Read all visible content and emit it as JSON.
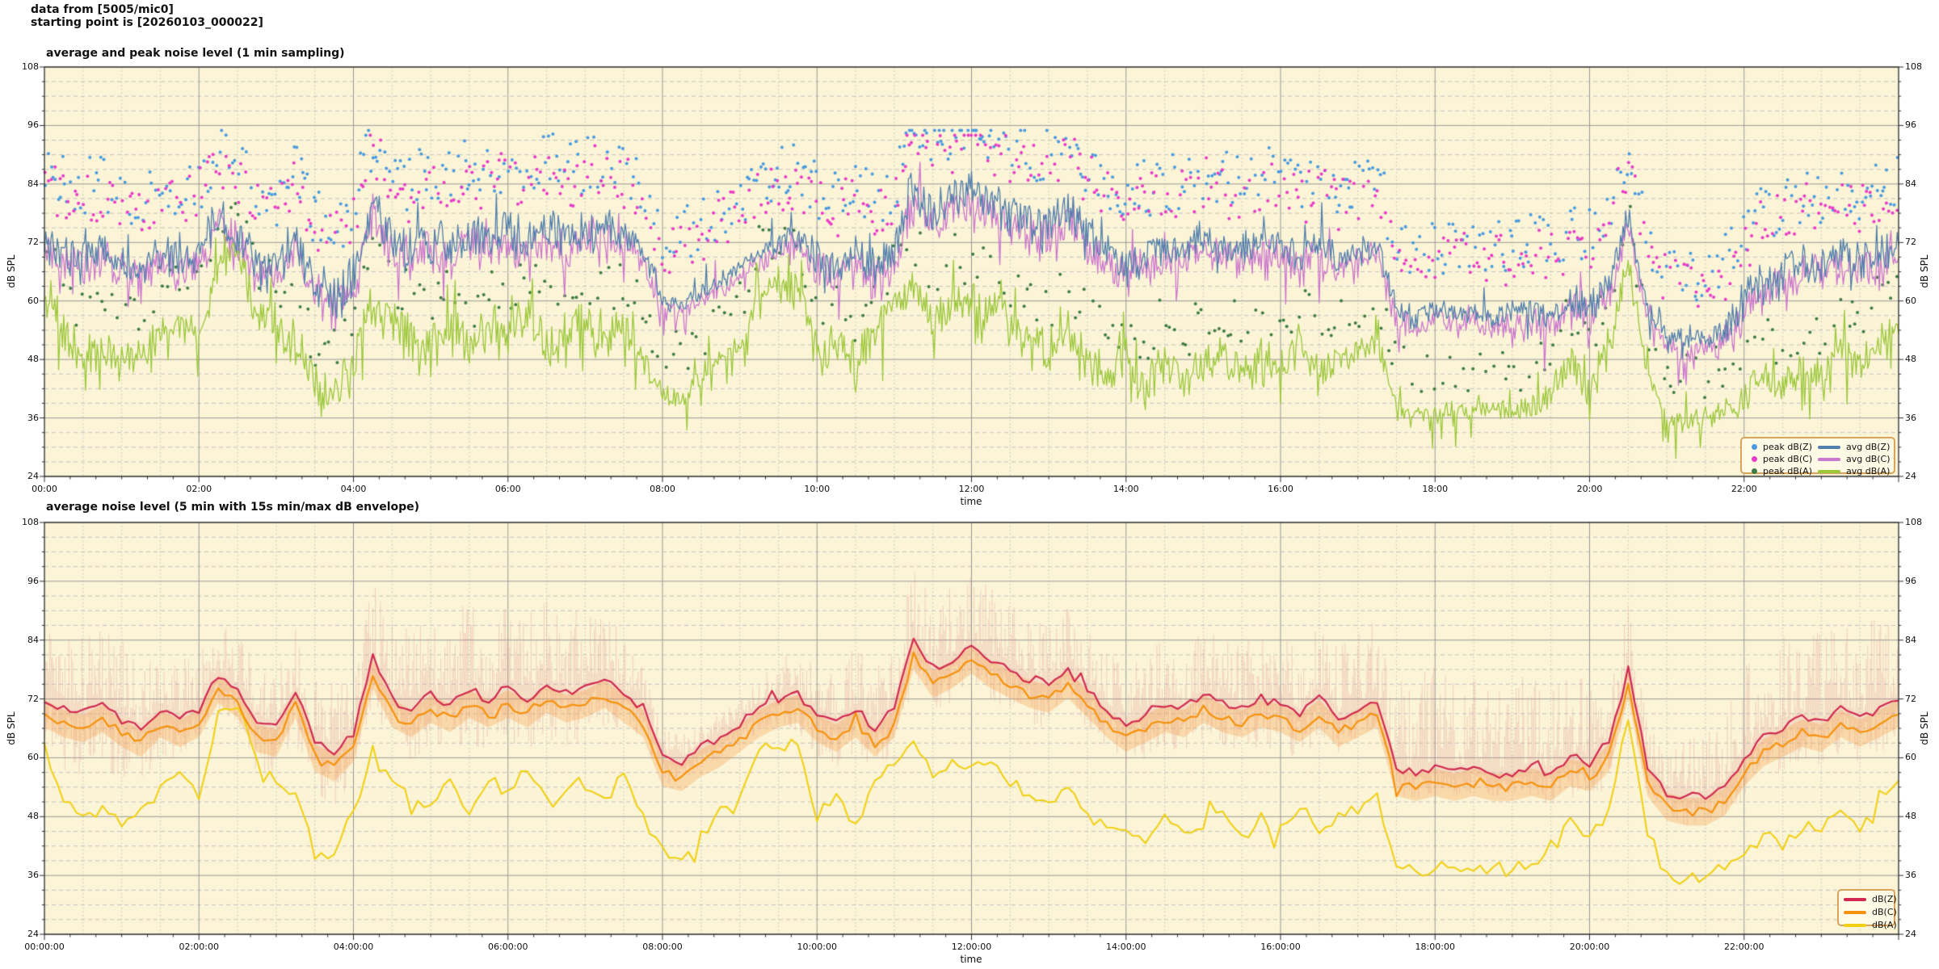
{
  "header": {
    "line1": "data from [5005/mic0]",
    "line2": "starting point is [20260103_000022]"
  },
  "style": {
    "plot_bg": "#FBF4D6",
    "grid_major": "#9a9a9a",
    "grid_minor": "#c3c3c3",
    "frame": "#2b2b2b",
    "tick_color": "#2b2b2b",
    "legend_border": "#D8A45B",
    "legend_bg": "#FFFAE6"
  },
  "chart_data": [
    {
      "type": "line+scatter",
      "title": "average and peak noise level (1 min sampling)",
      "xlabel": "time",
      "ylabel": "dB SPL",
      "ylim": [
        24,
        108
      ],
      "yticks": [
        108,
        96,
        84,
        72,
        60,
        48,
        36,
        24
      ],
      "xtick_hours": [
        0,
        2,
        4,
        6,
        8,
        10,
        12,
        14,
        16,
        18,
        20,
        22
      ],
      "xtick_labels": [
        "00:00",
        "02:00",
        "04:00",
        "06:00",
        "08:00",
        "10:00",
        "12:00",
        "14:00",
        "16:00",
        "18:00",
        "20:00",
        "22:00"
      ],
      "grid": "major solid, minor dashed 3 dB / dotted 30 min",
      "legend_position": "bottom-right",
      "anchor_step_hours": 0.25,
      "series": [
        {
          "name": "avg dB(Z)",
          "color": "#527FAC",
          "width": 1.3,
          "values": [
            72,
            70,
            69,
            71,
            68,
            66,
            70,
            68,
            70,
            77,
            74,
            67,
            66,
            74,
            63,
            61,
            65,
            80,
            72,
            70,
            73,
            71,
            74,
            72,
            74,
            72,
            75,
            73,
            74,
            76,
            73,
            70,
            60,
            59,
            62,
            64,
            67,
            70,
            72,
            73,
            69,
            67,
            70,
            66,
            70,
            84,
            78,
            80,
            83,
            80,
            78,
            76,
            75,
            78,
            74,
            70,
            67,
            69,
            71,
            70,
            73,
            71,
            70,
            72,
            71,
            69,
            72,
            68,
            70,
            72,
            58,
            57,
            58,
            57,
            58,
            57,
            57,
            58,
            57,
            60,
            59,
            63,
            78,
            58,
            53,
            52,
            52,
            54,
            60,
            64,
            66,
            68,
            67,
            70,
            68,
            70,
            72
          ],
          "jitter": [
            4,
            4,
            4,
            4.5,
            4.5,
            4.5,
            4.5,
            4.5,
            2,
            1.5,
            4,
            4.5,
            4,
            4.5,
            4,
            3.5,
            3.5,
            3,
            2.5,
            2.5,
            4,
            1.5,
            4,
            4,
            4
          ],
          "spike_up": {
            "p": 0.05,
            "m": 7
          },
          "spike_dn": {
            "p": 0.05,
            "m": 6
          }
        },
        {
          "name": "avg dB(C)",
          "color": "#CC77CE",
          "width": 1.3,
          "values": [
            70,
            68,
            67,
            69,
            66,
            64,
            68,
            66,
            68,
            75,
            72,
            65,
            64,
            72,
            61,
            59,
            63,
            78,
            70,
            68,
            71,
            69,
            72,
            70,
            72,
            70,
            73,
            71,
            72,
            74,
            71,
            68,
            58,
            57,
            60,
            62,
            65,
            68,
            70,
            71,
            67,
            65,
            68,
            64,
            68,
            82,
            76,
            78,
            81,
            78,
            76,
            74,
            73,
            76,
            72,
            68,
            65,
            67,
            69,
            68,
            71,
            69,
            68,
            70,
            69,
            67,
            70,
            66,
            68,
            70,
            56,
            55,
            56,
            55,
            56,
            55,
            55,
            56,
            55,
            58,
            57,
            61,
            76,
            56,
            51,
            50,
            50,
            52,
            58,
            62,
            64,
            66,
            65,
            68,
            66,
            68,
            70
          ],
          "jitter": [
            4,
            4,
            4,
            4.5,
            4.5,
            4.5,
            4.5,
            4.5,
            2,
            1.5,
            4,
            4.5,
            4,
            4.5,
            4,
            3.5,
            3.5,
            3,
            2.5,
            2.5,
            4,
            1.5,
            4,
            4,
            4
          ],
          "spike_up": {
            "p": 0.04,
            "m": 6
          },
          "spike_dn": {
            "p": 0.09,
            "m": 8
          }
        },
        {
          "name": "avg dB(A)",
          "color": "#9DC83C",
          "width": 1.3,
          "values": [
            62,
            52,
            48,
            50,
            47,
            50,
            54,
            56,
            52,
            68,
            71,
            58,
            55,
            52,
            42,
            40,
            48,
            60,
            55,
            52,
            50,
            55,
            48,
            56,
            52,
            58,
            50,
            54,
            55,
            52,
            56,
            48,
            41,
            40,
            44,
            49,
            50,
            62,
            63,
            62,
            48,
            52,
            46,
            55,
            58,
            64,
            55,
            60,
            58,
            60,
            55,
            52,
            50,
            54,
            48,
            45,
            46,
            42,
            48,
            44,
            47,
            50,
            44,
            48,
            46,
            50,
            45,
            48,
            50,
            52,
            38,
            37,
            37,
            38,
            37,
            38,
            37,
            38,
            40,
            48,
            44,
            50,
            68,
            45,
            36,
            35,
            36,
            38,
            40,
            44,
            42,
            46,
            45,
            50,
            46,
            52,
            55
          ],
          "jitter": [
            5,
            4,
            2,
            5,
            5,
            5.5,
            5.5,
            5,
            2.5,
            1.2,
            5,
            4.5,
            4,
            4.5,
            4.5,
            4,
            4,
            3,
            1.5,
            2,
            5,
            1.5,
            3.5,
            3.5,
            3.5
          ],
          "spike_up": {
            "p": 0.06,
            "m": 8
          },
          "spike_dn": {
            "p": 0.08,
            "m": 8
          }
        }
      ],
      "scatter_series": [
        {
          "name": "peak dB(Z)",
          "color": "#4A9BE0",
          "marker": "dot",
          "over": 0,
          "offset_min": 8,
          "offset_max": 20,
          "max_db": 95,
          "gap_min": 2.4
        },
        {
          "name": "peak dB(C)",
          "color": "#E83CC8",
          "marker": "dot",
          "over": 1,
          "offset_min": 8,
          "offset_max": 19,
          "max_db": 94,
          "gap_min": 2.6
        },
        {
          "name": "peak dB(A)",
          "color": "#3F7D45",
          "marker": "dot",
          "over": 2,
          "offset_min": 4,
          "offset_max": 14,
          "max_db": 80,
          "gap_min": 4.5
        }
      ]
    },
    {
      "type": "line",
      "title": "average noise level (5 min with 15s min/max dB envelope)",
      "xlabel": "time",
      "ylabel": "dB SPL",
      "ylim": [
        24,
        108
      ],
      "yticks": [
        108,
        96,
        84,
        72,
        60,
        48,
        36,
        24
      ],
      "xtick_hours": [
        0,
        2,
        4,
        6,
        8,
        10,
        12,
        14,
        16,
        18,
        20,
        22
      ],
      "xtick_labels": [
        "00:00:00",
        "02:00:00",
        "04:00:00",
        "06:00:00",
        "08:00:00",
        "10:00:00",
        "12:00:00",
        "14:00:00",
        "16:00:00",
        "18:00:00",
        "20:00:00",
        "22:00:00"
      ],
      "grid": "major solid, minor dashed 3 dB / dotted 30 min",
      "legend_position": "bottom-right",
      "anchor_step_hours": 0.25,
      "series": [
        {
          "name": "dB(Z)",
          "color": "#D02A50",
          "width": 2.2,
          "jitter_const": 1.0,
          "spike_up": {
            "p": 0.02,
            "m": 2
          },
          "spike_dn": {
            "p": 0.02,
            "m": 2
          },
          "values": [
            72,
            70,
            69,
            71,
            68,
            66,
            70,
            68,
            70,
            77,
            74,
            67,
            66,
            74,
            63,
            61,
            65,
            80,
            72,
            70,
            73,
            71,
            74,
            72,
            74,
            72,
            75,
            73,
            74,
            76,
            73,
            70,
            60,
            59,
            62,
            64,
            67,
            70,
            72,
            73,
            69,
            67,
            70,
            66,
            70,
            84,
            78,
            80,
            83,
            80,
            78,
            76,
            75,
            78,
            74,
            70,
            67,
            69,
            71,
            70,
            73,
            71,
            70,
            72,
            71,
            69,
            72,
            68,
            70,
            72,
            58,
            57,
            58,
            57,
            58,
            57,
            57,
            58,
            57,
            60,
            59,
            63,
            78,
            58,
            53,
            52,
            52,
            54,
            60,
            64,
            66,
            68,
            67,
            70,
            68,
            70,
            72
          ]
        },
        {
          "name": "dB(C)",
          "color": "#F5920D",
          "width": 2.2,
          "jitter_const": 1.0,
          "spike_up": {
            "p": 0.02,
            "m": 2
          },
          "spike_dn": {
            "p": 0.02,
            "m": 2
          },
          "values": [
            69,
            67,
            66,
            68,
            65,
            63,
            67,
            65,
            67,
            74,
            71,
            64,
            63,
            71,
            60,
            58,
            62,
            77,
            69,
            67,
            70,
            68,
            71,
            69,
            71,
            69,
            72,
            70,
            71,
            73,
            70,
            67,
            57,
            56,
            59,
            61,
            64,
            67,
            69,
            70,
            66,
            64,
            67,
            63,
            67,
            81,
            75,
            77,
            80,
            77,
            75,
            73,
            72,
            75,
            71,
            67,
            64,
            66,
            68,
            67,
            70,
            68,
            67,
            69,
            68,
            66,
            69,
            65,
            67,
            69,
            55,
            54,
            55,
            54,
            55,
            54,
            54,
            55,
            54,
            57,
            56,
            60,
            75,
            55,
            50,
            49,
            49,
            51,
            57,
            61,
            63,
            65,
            64,
            67,
            65,
            67,
            69
          ]
        },
        {
          "name": "dB(A)",
          "color": "#F0D010",
          "width": 2.0,
          "jitter_const": 1.5,
          "spike_up": {
            "p": 0.03,
            "m": 3
          },
          "spike_dn": {
            "p": 0.05,
            "m": 4
          },
          "values": [
            62,
            52,
            48,
            50,
            47,
            50,
            54,
            56,
            52,
            68,
            71,
            58,
            55,
            52,
            42,
            40,
            48,
            60,
            55,
            52,
            50,
            55,
            48,
            56,
            52,
            58,
            50,
            54,
            55,
            52,
            56,
            48,
            41,
            40,
            44,
            49,
            50,
            62,
            63,
            62,
            48,
            52,
            46,
            55,
            58,
            64,
            55,
            60,
            58,
            60,
            55,
            52,
            50,
            54,
            48,
            45,
            46,
            42,
            48,
            44,
            47,
            50,
            44,
            48,
            46,
            50,
            45,
            48,
            50,
            52,
            38,
            37,
            37,
            38,
            37,
            38,
            37,
            38,
            40,
            48,
            44,
            50,
            68,
            45,
            36,
            35,
            36,
            38,
            40,
            44,
            42,
            46,
            45,
            50,
            46,
            52,
            55
          ]
        }
      ],
      "envelope": {
        "label": "15s min/max dB envelope",
        "around": "dB(Z)",
        "color": "#DD8888",
        "alpha": 0.3,
        "up": [
          15,
          15,
          10,
          12,
          14,
          17,
          17,
          16,
          5,
          4,
          10,
          14,
          14,
          12,
          12,
          12,
          13,
          14,
          20,
          20,
          16,
          8,
          18,
          18,
          18
        ],
        "down": [
          12,
          12,
          6,
          10,
          10,
          10,
          10,
          10,
          4,
          3,
          8,
          8,
          8,
          8,
          8,
          8,
          9,
          6,
          4,
          4,
          8,
          4,
          8,
          8,
          8
        ]
      },
      "band": {
        "around": "dB(C)",
        "halfwidth": 2.8,
        "color": "rgba(246,158,74,0.32)"
      }
    }
  ]
}
